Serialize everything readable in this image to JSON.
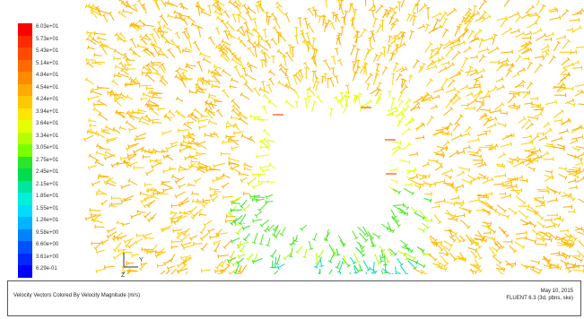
{
  "legend": {
    "entries": [
      {
        "label": "6.03e+01",
        "color": "#ff0000"
      },
      {
        "label": "5.73e+01",
        "color": "#ff2a00"
      },
      {
        "label": "5.43e+01",
        "color": "#ff4a00"
      },
      {
        "label": "5.14e+01",
        "color": "#ff6a00"
      },
      {
        "label": "4.84e+01",
        "color": "#ff8a00"
      },
      {
        "label": "4.54e+01",
        "color": "#ffaa00"
      },
      {
        "label": "4.24e+01",
        "color": "#ffc800"
      },
      {
        "label": "3.94e+01",
        "color": "#ffe600"
      },
      {
        "label": "3.64e+01",
        "color": "#e6ff00"
      },
      {
        "label": "3.34e+01",
        "color": "#b4ff00"
      },
      {
        "label": "3.05e+01",
        "color": "#78ff00"
      },
      {
        "label": "2.75e+01",
        "color": "#28e628"
      },
      {
        "label": "2.45e+01",
        "color": "#00dc50"
      },
      {
        "label": "2.15e+01",
        "color": "#00e6a0"
      },
      {
        "label": "1.85e+01",
        "color": "#00f0dc"
      },
      {
        "label": "1.55e+01",
        "color": "#00dcff"
      },
      {
        "label": "1.26e+01",
        "color": "#00b4ff"
      },
      {
        "label": "9.58e+00",
        "color": "#0082ff"
      },
      {
        "label": "6.60e+00",
        "color": "#0050ff"
      },
      {
        "label": "3.61e+00",
        "color": "#0028ff"
      },
      {
        "label": "6.29e-01",
        "color": "#0000ff"
      }
    ]
  },
  "axes": {
    "y_label": "Y",
    "z_label": "Z"
  },
  "footer": {
    "title": "Velocity Vectors Colored By Velocity Magnitude (m/s)",
    "date": "May 10, 2015",
    "solver": "FLUENT 6.3 (3d, pbns, ske)"
  },
  "colors": {
    "dominant_vector": "#ffc800",
    "background": "#ffffff"
  }
}
